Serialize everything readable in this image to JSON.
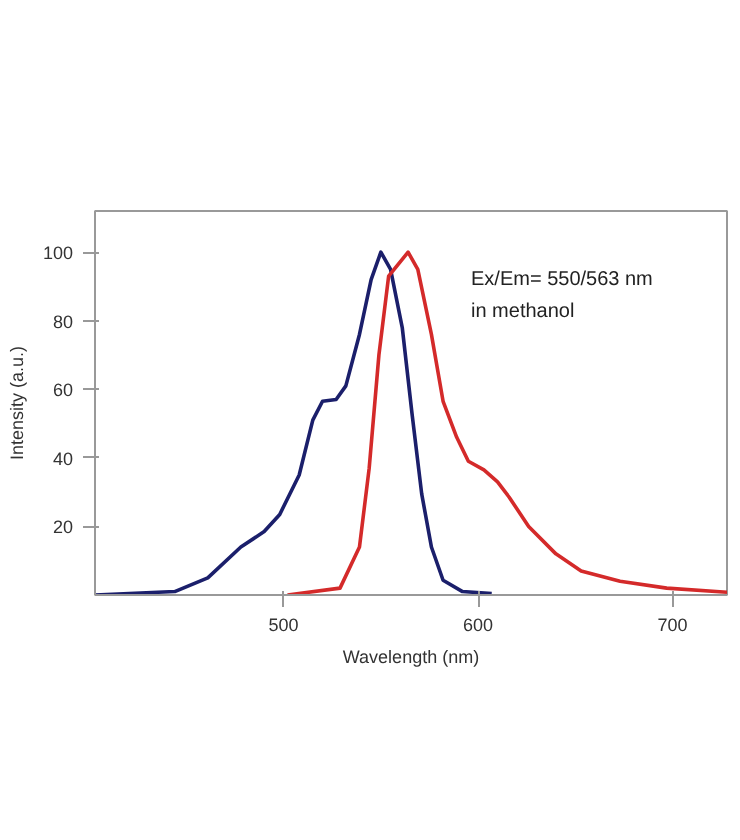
{
  "chart_data": {
    "type": "line",
    "xlabel": "Wavelength (nm)",
    "ylabel": "Intensity (a.u.)",
    "annotations": [
      "Ex/Em= 550/563 nm",
      "in methanol"
    ],
    "xlim": [
      403,
      728
    ],
    "ylim": [
      0,
      112
    ],
    "xticks": [
      500,
      600,
      700
    ],
    "yticks": [
      20,
      40,
      60,
      80,
      100
    ],
    "grid": false,
    "marker": "none",
    "line_style": "solid",
    "series": [
      {
        "color": "#1b1f6b",
        "x": [
          403,
          444,
          461,
          478,
          490,
          498,
          508,
          515,
          520,
          527,
          532,
          539,
          545,
          550,
          555,
          561,
          566,
          571,
          576,
          582,
          592,
          607
        ],
        "values": [
          0,
          1,
          5,
          14,
          18.5,
          23.5,
          35,
          51,
          56.5,
          57,
          61,
          76,
          92,
          100,
          95,
          78,
          53,
          29.5,
          14,
          4.3,
          1,
          0.4
        ]
      },
      {
        "color": "#d42a2a",
        "x": [
          502,
          529,
          539,
          544,
          549,
          554,
          564,
          569,
          576,
          582,
          589,
          595,
          603,
          610,
          616,
          626,
          640,
          653,
          673,
          697,
          728
        ],
        "values": [
          0,
          2,
          14,
          37,
          70,
          93,
          100,
          95,
          76,
          56.5,
          46,
          39,
          36.5,
          33,
          28.5,
          20,
          12,
          7,
          4,
          2,
          0.8
        ]
      }
    ]
  }
}
